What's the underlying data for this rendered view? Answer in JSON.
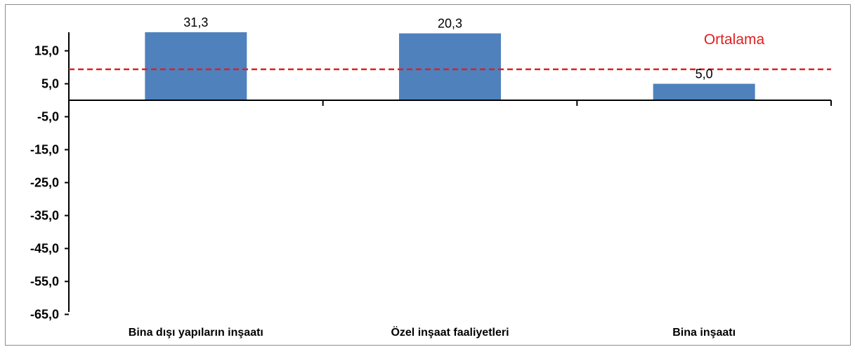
{
  "chart_data": {
    "type": "bar",
    "categories": [
      "Bina dışı yapıların inşaatı",
      "Özel inşaat faaliyetleri",
      "Bina inşaatı"
    ],
    "values": [
      31.3,
      20.3,
      5.0
    ],
    "value_labels": [
      "31,3",
      "20,3",
      "5,0"
    ],
    "y_ticks": [
      15,
      5,
      -5,
      -15,
      -25,
      -35,
      -45,
      -55,
      -65
    ],
    "y_tick_labels": [
      "15,0",
      "5,0",
      "-5,0",
      "-15,0",
      "-25,0",
      "-35,0",
      "-45,0",
      "-55,0",
      "-65,0"
    ],
    "ylim": [
      -65,
      20
    ],
    "ylim_note": "top of plot clipped near 20; taller bars extend past the visible range",
    "reference_line": {
      "label": "Ortalama",
      "value": 9.4,
      "style": "dashed",
      "color": "#e02020"
    },
    "bar_color": "#4f81bd",
    "grid": false,
    "legend": "none",
    "title": "",
    "xlabel": "",
    "ylabel": ""
  }
}
